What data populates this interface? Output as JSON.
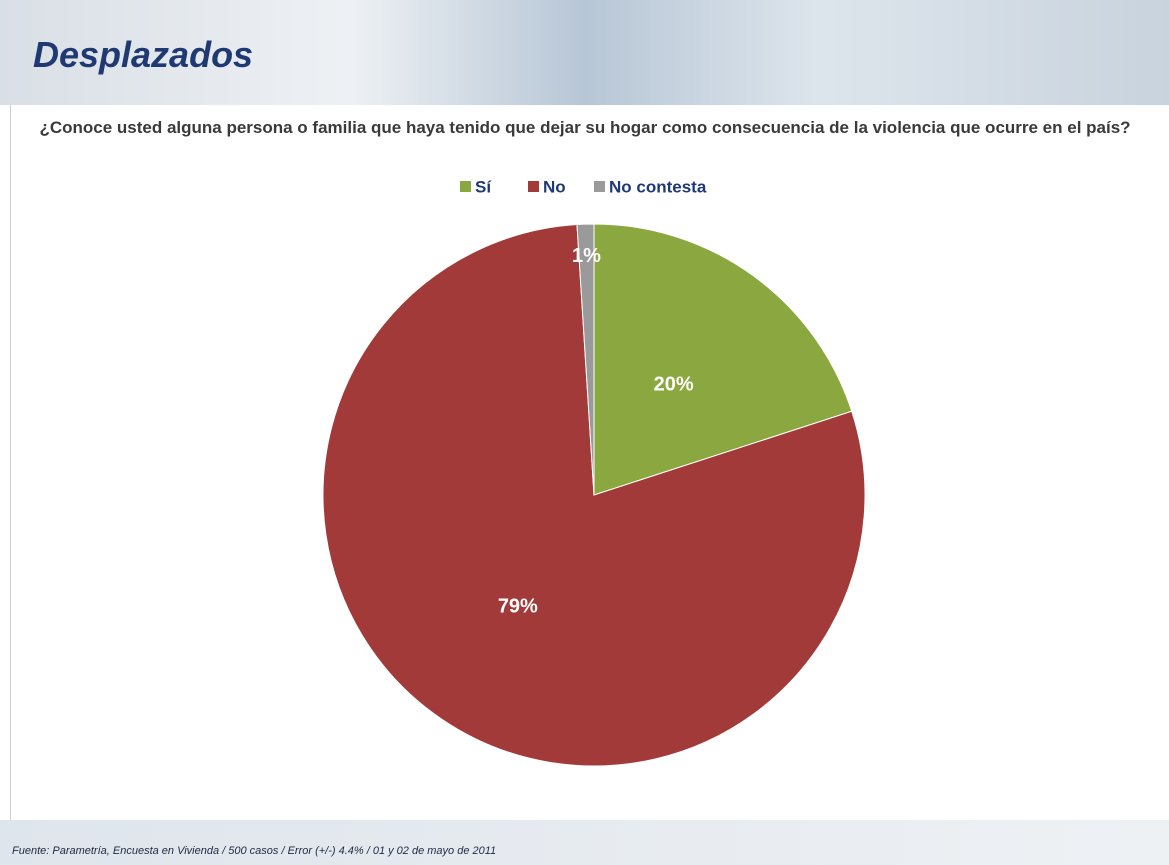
{
  "chart_data": {
    "type": "pie",
    "title": "Desplazados",
    "subtitle": "¿Conoce usted alguna persona o familia que haya tenido que dejar su hogar como consecuencia de la violencia que ocurre en el país?",
    "categories": [
      "Sí",
      "No",
      "No contesta"
    ],
    "values": [
      20,
      79,
      1
    ],
    "value_labels": [
      "20%",
      "79%",
      "1%"
    ],
    "colors": [
      "#8aa83f",
      "#a33a3a",
      "#9a9a9a"
    ],
    "legend": "top",
    "source": "Fuente: Parametría, Encuesta en Vivienda / 500 casos / Error (+/-) 4.4% / 01 y 02 de mayo de 2011"
  }
}
